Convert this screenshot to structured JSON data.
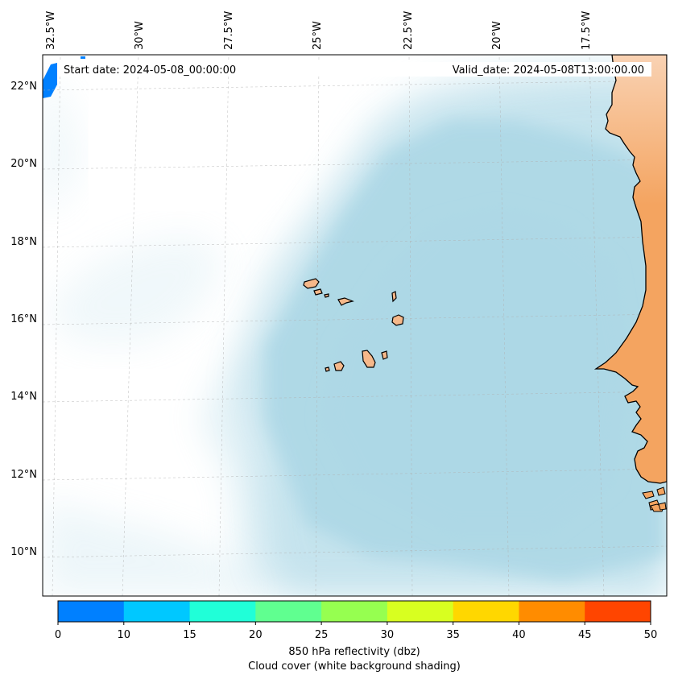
{
  "map": {
    "start_date_label": "Start date: 2024-05-08_00:00:00",
    "valid_date_label": "Valid_date: 2024-05-08T13:00:00.00",
    "lon_ticks": [
      "32.5°W",
      "30°W",
      "27.5°W",
      "25°W",
      "22.5°W",
      "20°W",
      "17.5°W"
    ],
    "lat_ticks": [
      "22°N",
      "20°N",
      "18°N",
      "16°N",
      "14°N",
      "12°N",
      "10°N"
    ],
    "colors": {
      "ocean_cloud": "#add8e6",
      "land": "#f4a460",
      "coast": "#000000",
      "grid": "#b0b0b0"
    }
  },
  "colorbar": {
    "ticks": [
      "0",
      "10",
      "15",
      "20",
      "25",
      "30",
      "35",
      "40",
      "45",
      "50"
    ],
    "colors": [
      "#0080ff",
      "#00c8ff",
      "#20ffd8",
      "#60ff90",
      "#96ff50",
      "#d8ff20",
      "#ffd700",
      "#ff8c00",
      "#ff4500"
    ],
    "label_line1": "850 hPa reflectivity (dbz)",
    "label_line2": "Cloud cover (white background shading)"
  }
}
